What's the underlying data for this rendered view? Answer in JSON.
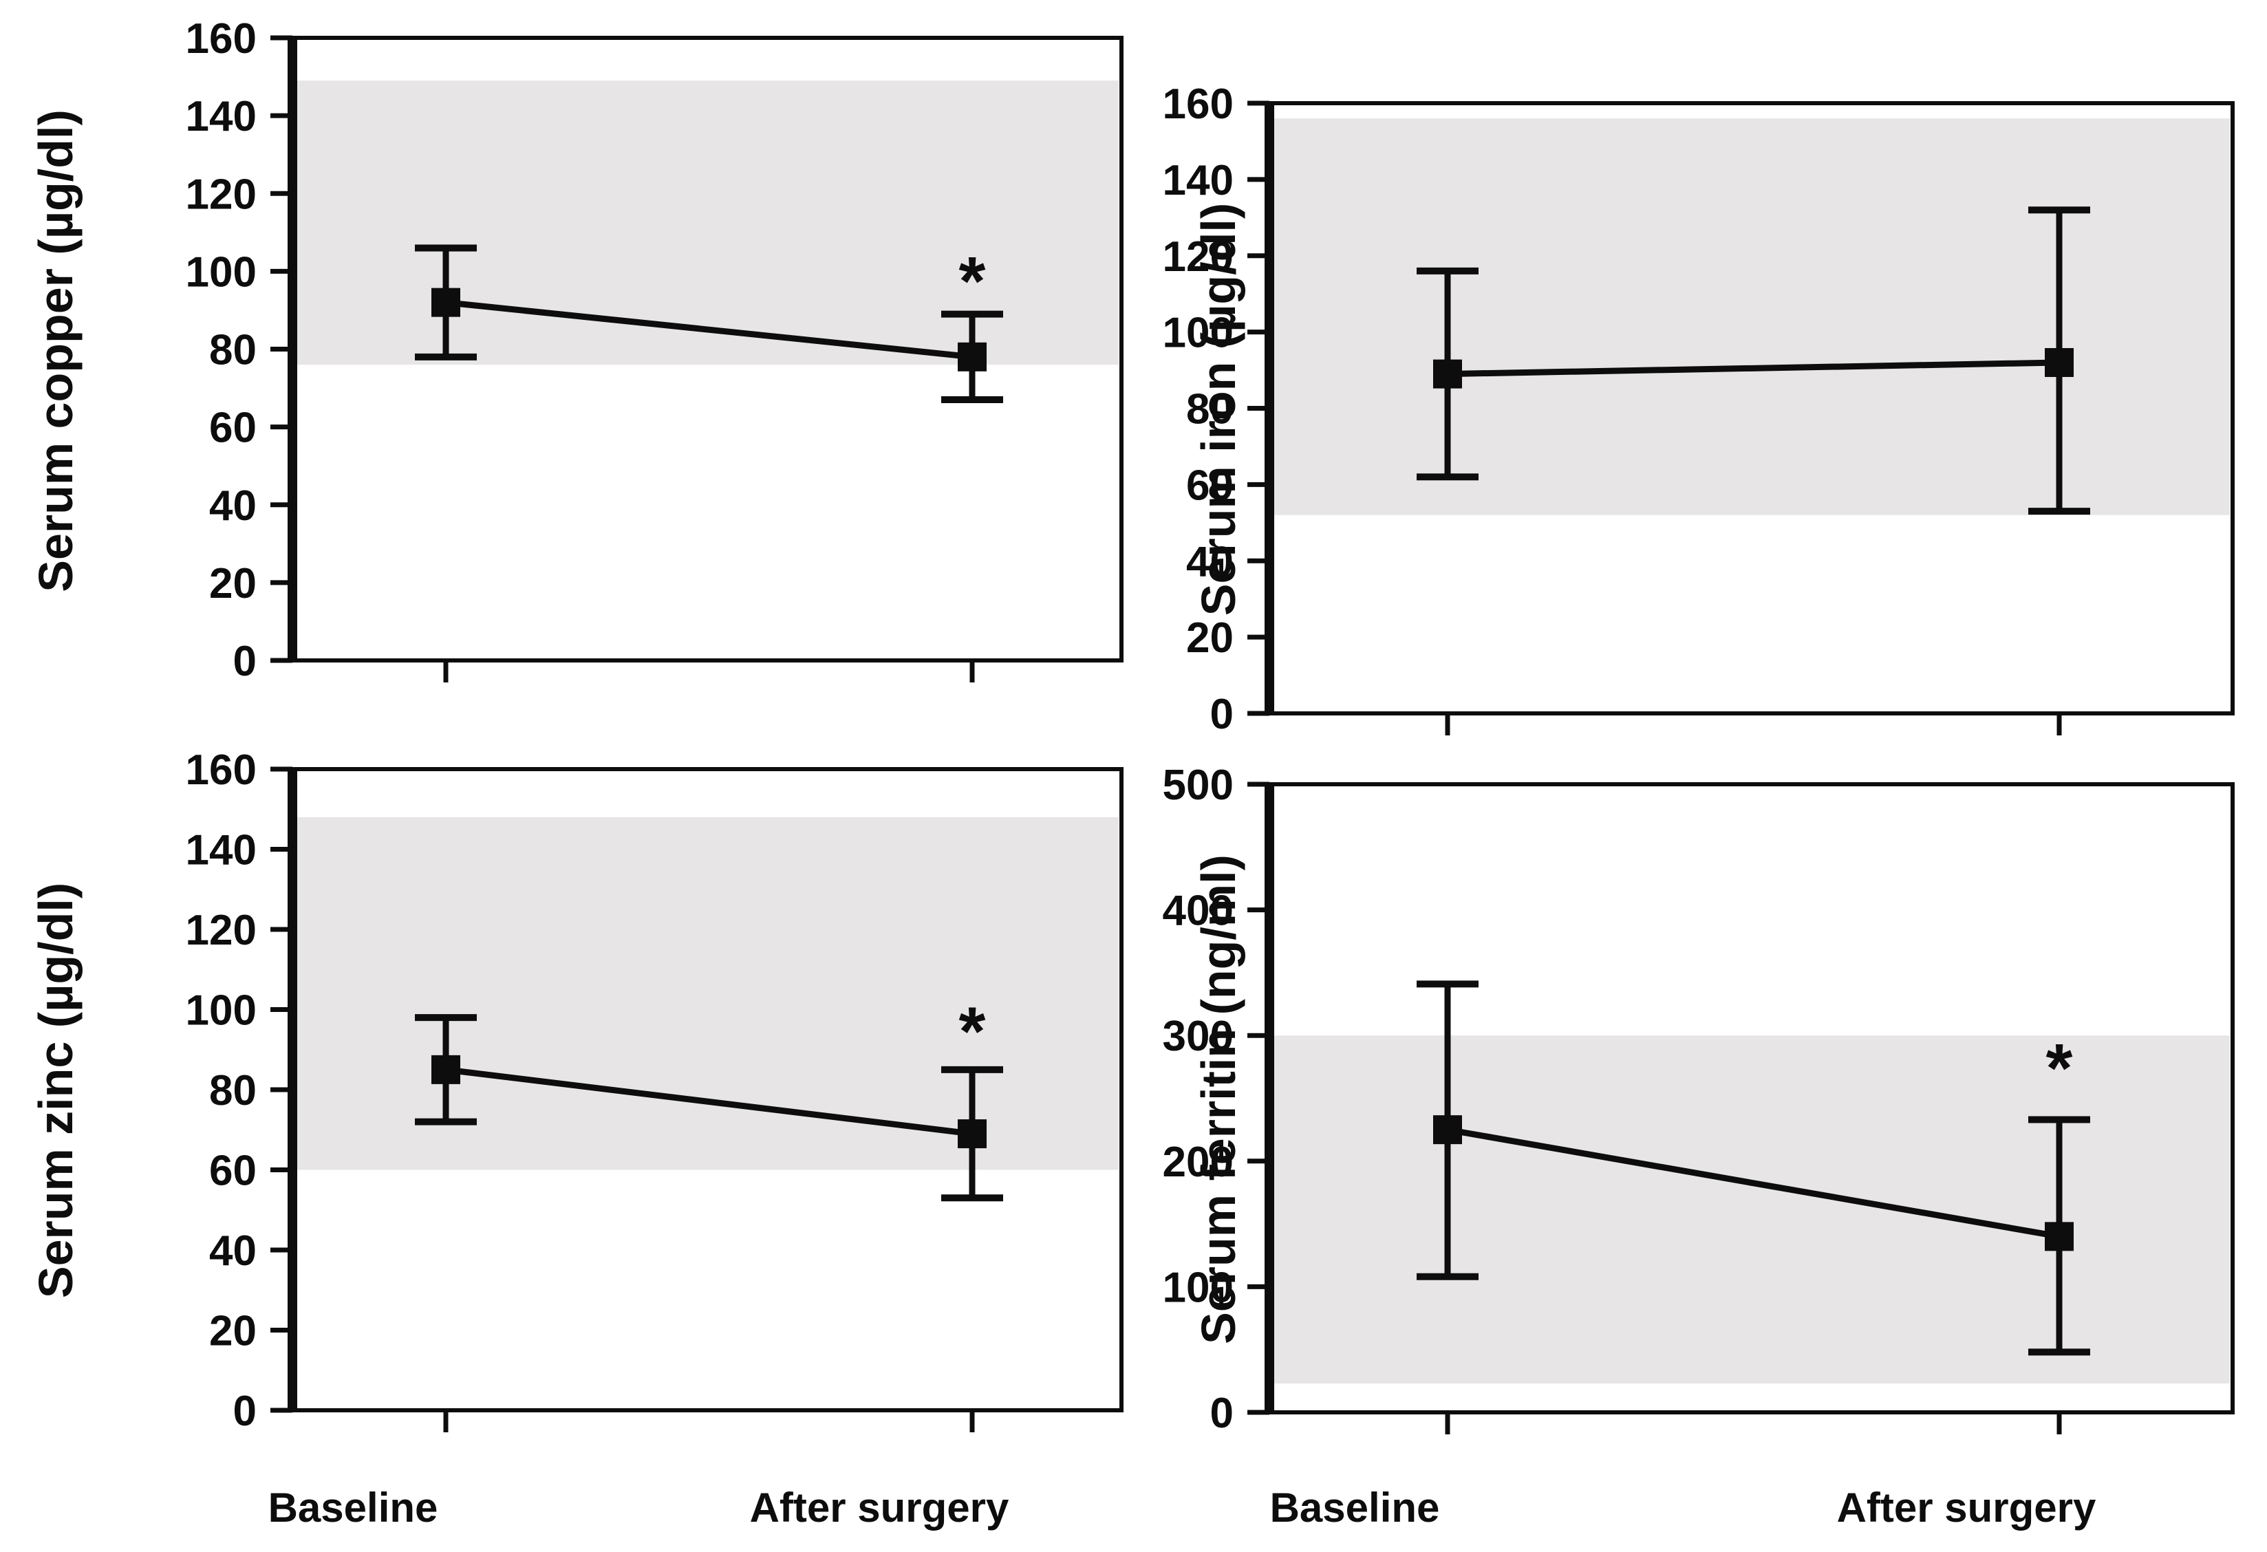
{
  "figure": {
    "background_color": "#ffffff",
    "reference_band_color": "#e7e5e6",
    "ink_color": "#0d0d0d",
    "marker_shape": "filled-square",
    "significance_symbol": "*",
    "x_categories": [
      "Baseline",
      "After surgery"
    ]
  },
  "chart_data": [
    {
      "type": "line",
      "panel": "top-left",
      "ylabel": "Serum copper (µg/dl)",
      "unit": "µg/dl",
      "ylim": [
        0,
        160
      ],
      "yticks": [
        0,
        20,
        40,
        60,
        80,
        100,
        120,
        140,
        160
      ],
      "categories": [
        "Baseline",
        "After surgery"
      ],
      "series": [
        {
          "name": "Serum copper",
          "means": [
            92,
            78
          ],
          "err_low": [
            78,
            67
          ],
          "err_high": [
            106,
            89
          ]
        }
      ],
      "reference_band": [
        76,
        149
      ],
      "significant_categories": [
        "After surgery"
      ],
      "significance_marker_y": 102,
      "grid": "off",
      "legend": "none"
    },
    {
      "type": "line",
      "panel": "top-right",
      "ylabel": "Serum iron (µg/dl)",
      "unit": "µg/dl",
      "ylim": [
        0,
        160
      ],
      "yticks": [
        0,
        20,
        40,
        60,
        80,
        100,
        120,
        140,
        160
      ],
      "categories": [
        "Baseline",
        "After surgery"
      ],
      "series": [
        {
          "name": "Serum iron",
          "means": [
            89,
            92
          ],
          "err_low": [
            62,
            53
          ],
          "err_high": [
            116,
            132
          ]
        }
      ],
      "reference_band": [
        52,
        156
      ],
      "significant_categories": [],
      "significance_marker_y": null,
      "grid": "off",
      "legend": "none"
    },
    {
      "type": "line",
      "panel": "bottom-left",
      "ylabel": "Serum zinc (µg/dl)",
      "unit": "µg/dl",
      "ylim": [
        0,
        160
      ],
      "yticks": [
        0,
        20,
        40,
        60,
        80,
        100,
        120,
        140,
        160
      ],
      "categories": [
        "Baseline",
        "After surgery"
      ],
      "series": [
        {
          "name": "Serum zinc",
          "means": [
            85,
            69
          ],
          "err_low": [
            72,
            53
          ],
          "err_high": [
            98,
            85
          ]
        }
      ],
      "reference_band": [
        60,
        148
      ],
      "significant_categories": [
        "After surgery"
      ],
      "significance_marker_y": 99,
      "grid": "off",
      "legend": "none"
    },
    {
      "type": "line",
      "panel": "bottom-right",
      "ylabel": "Serum ferritin (ng/ml)",
      "unit": "ng/ml",
      "ylim": [
        0,
        500
      ],
      "yticks": [
        0,
        100,
        200,
        300,
        400,
        500
      ],
      "categories": [
        "Baseline",
        "After surgery"
      ],
      "series": [
        {
          "name": "Serum ferritin",
          "means": [
            225,
            140
          ],
          "err_low": [
            108,
            48
          ],
          "err_high": [
            341,
            233
          ]
        }
      ],
      "reference_band": [
        23,
        300
      ],
      "significant_categories": [
        "After surgery"
      ],
      "significance_marker_y": 288,
      "grid": "off",
      "legend": "none"
    }
  ]
}
